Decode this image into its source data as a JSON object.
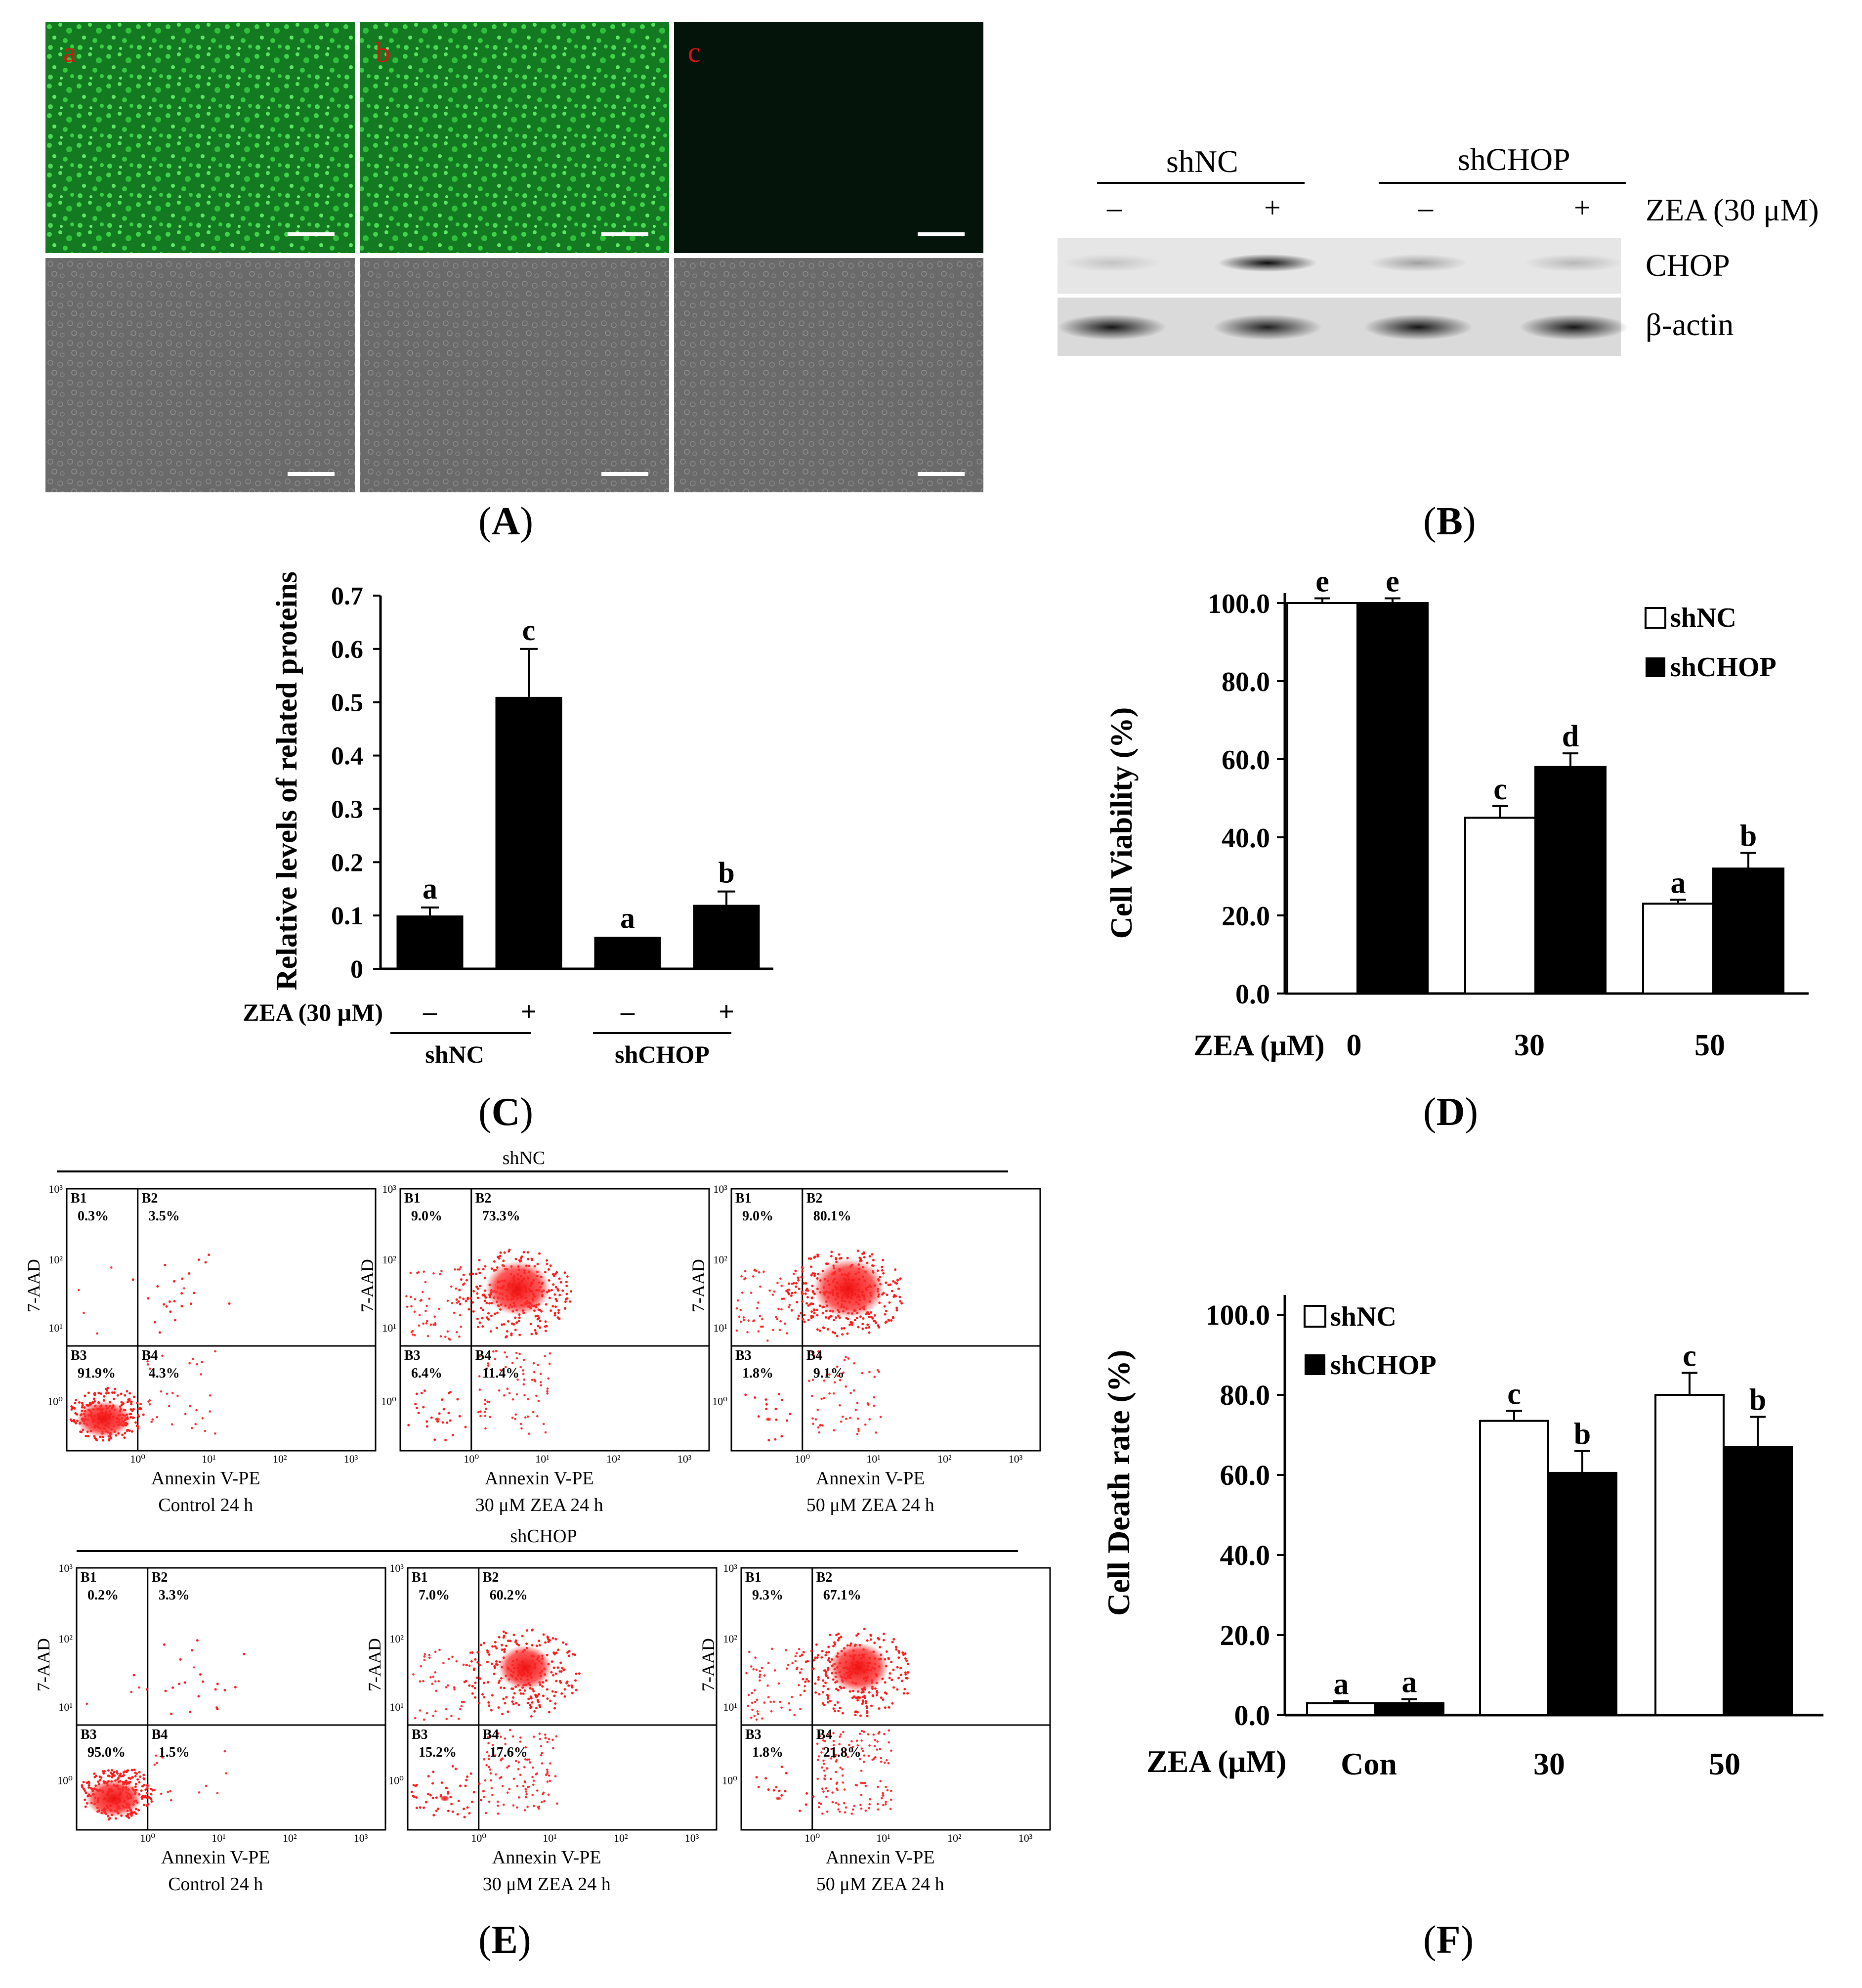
{
  "panel_labels": [
    "A",
    "B",
    "C",
    "D",
    "E",
    "F"
  ],
  "panelA": {
    "fluor_labels": [
      "a",
      "b",
      "c"
    ],
    "colors": {
      "fluor": "#1faa2c",
      "bright": "#6c6c6c",
      "dark": "#03130a",
      "label": "#e01010"
    }
  },
  "panelB": {
    "groups": [
      "shNC",
      "shCHOP"
    ],
    "treatment": [
      "–",
      "+",
      "–",
      "+"
    ],
    "treatment_label": "ZEA (30 μM)",
    "bands": [
      "CHOP",
      "β-actin"
    ],
    "chop_intensity": [
      0.15,
      0.95,
      0.3,
      0.2
    ],
    "actin_intensity": [
      0.9,
      0.85,
      0.9,
      0.9
    ]
  },
  "panelE": {
    "group_titles": [
      "shNC",
      "shCHOP"
    ],
    "y_axis": "7-AAD",
    "x_axis": "Annexin V-PE",
    "y_ticks": [
      "10³",
      "10²",
      "10¹",
      "10⁰"
    ],
    "x_ticks": [
      "10⁰",
      "10¹",
      "10²",
      "10³"
    ],
    "quadrants": [
      "B1",
      "B2",
      "B3",
      "B4"
    ],
    "rows": [
      [
        {
          "caption": "Control 24 h",
          "values": [
            "0.3%",
            "3.5%",
            "91.9%",
            "4.3%"
          ]
        },
        {
          "caption": "30 μM  ZEA 24 h",
          "values": [
            "9.0%",
            "73.3%",
            "6.4%",
            "11.4%"
          ]
        },
        {
          "caption": "50 μM  ZEA 24 h",
          "values": [
            "9.0%",
            "80.1%",
            "1.8%",
            "9.1%"
          ]
        }
      ],
      [
        {
          "caption": "Control 24 h",
          "values": [
            "0.2%",
            "3.3%",
            "95.0%",
            "1.5%"
          ]
        },
        {
          "caption": "30 μM  ZEA 24 h",
          "values": [
            "7.0%",
            "60.2%",
            "15.2%",
            "17.6%"
          ]
        },
        {
          "caption": "50 μM  ZEA 24 h",
          "values": [
            "9.3%",
            "67.1%",
            "1.8%",
            "21.8%"
          ]
        }
      ]
    ]
  },
  "chart_data": [
    {
      "id": "C",
      "type": "bar",
      "ylabel": "Relative levels of related proteins",
      "ylim": [
        0,
        0.7
      ],
      "yticks": [
        "0",
        "0.1",
        "0.2",
        "0.3",
        "0.4",
        "0.5",
        "0.6",
        "0.7"
      ],
      "treatment_label": "ZEA (30 μM)",
      "treatment": [
        "–",
        "+",
        "–",
        "+"
      ],
      "groups": [
        "shNC",
        "shCHOP"
      ],
      "values": [
        0.1,
        0.51,
        0.06,
        0.12
      ],
      "errors": [
        0.015,
        0.09,
        0.0,
        0.025
      ],
      "letters": [
        "a",
        "c",
        "a",
        "b"
      ],
      "colors": [
        "#000000",
        "#000000",
        "#000000",
        "#000000"
      ]
    },
    {
      "id": "D",
      "type": "bar",
      "ylabel": "Cell Viability (%)",
      "ylim": [
        0,
        100
      ],
      "yticks": [
        "0.0",
        "20.0",
        "40.0",
        "60.0",
        "80.0",
        "100.0"
      ],
      "xlabel": "ZEA (μM)",
      "categories": [
        "0",
        "30",
        "50"
      ],
      "legend": "top-right",
      "series": [
        {
          "name": "shNC",
          "values": [
            100,
            45,
            23
          ],
          "errors": [
            1.2,
            3,
            1
          ],
          "letters": [
            "e",
            "c",
            "a"
          ],
          "color": "#ffffff"
        },
        {
          "name": "shCHOP",
          "values": [
            100,
            58,
            32
          ],
          "errors": [
            1.2,
            3.5,
            4
          ],
          "letters": [
            "e",
            "d",
            "b"
          ],
          "color": "#000000"
        }
      ]
    },
    {
      "id": "F",
      "type": "bar",
      "ylabel": "Cell Death rate (%)",
      "ylim": [
        0,
        100
      ],
      "yticks": [
        "0.0",
        "20.0",
        "40.0",
        "60.0",
        "80.0",
        "100.0"
      ],
      "xlabel": "ZEA (μM)",
      "categories": [
        "Con",
        "30",
        "50"
      ],
      "legend": "top-left",
      "series": [
        {
          "name": "shNC",
          "values": [
            3,
            73.5,
            80
          ],
          "errors": [
            0.5,
            2.5,
            5.5
          ],
          "letters": [
            "a",
            "c",
            "c"
          ],
          "color": "#ffffff"
        },
        {
          "name": "shCHOP",
          "values": [
            3,
            60.5,
            67
          ],
          "errors": [
            1,
            5.5,
            7.5
          ],
          "letters": [
            "a",
            "b",
            "b"
          ],
          "color": "#000000"
        }
      ]
    }
  ]
}
